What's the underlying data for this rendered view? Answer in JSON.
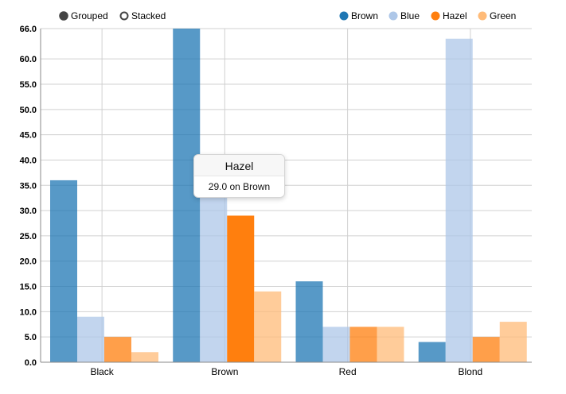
{
  "controls": [
    {
      "label": "Grouped",
      "selected": true
    },
    {
      "label": "Stacked",
      "selected": false
    }
  ],
  "tooltip": {
    "title": "Hazel",
    "body": "29.0 on Brown"
  },
  "chart_data": {
    "type": "bar",
    "categories": [
      "Black",
      "Brown",
      "Red",
      "Blond"
    ],
    "series": [
      {
        "name": "Brown",
        "color": "#1f77b4",
        "values": [
          36,
          66,
          16,
          4
        ]
      },
      {
        "name": "Blue",
        "color": "#aec7e8",
        "values": [
          9,
          34,
          7,
          64
        ]
      },
      {
        "name": "Hazel",
        "color": "#ff7f0e",
        "values": [
          5,
          29,
          7,
          5
        ]
      },
      {
        "name": "Green",
        "color": "#ffbb78",
        "values": [
          2,
          14,
          7,
          8
        ]
      }
    ],
    "ylim": [
      0,
      66
    ],
    "yticks": [
      "0.0",
      "5.0",
      "10.0",
      "15.0",
      "20.0",
      "25.0",
      "30.0",
      "35.0",
      "40.0",
      "45.0",
      "50.0",
      "55.0",
      "60.0",
      "66.0"
    ],
    "ytick_values": [
      0,
      5,
      10,
      15,
      20,
      25,
      30,
      35,
      40,
      45,
      50,
      55,
      60,
      66
    ],
    "highlighted": {
      "series": "Hazel",
      "category": "Brown"
    },
    "grid": true,
    "legend_position": "top-right",
    "title": "",
    "xlabel": "",
    "ylabel": ""
  }
}
